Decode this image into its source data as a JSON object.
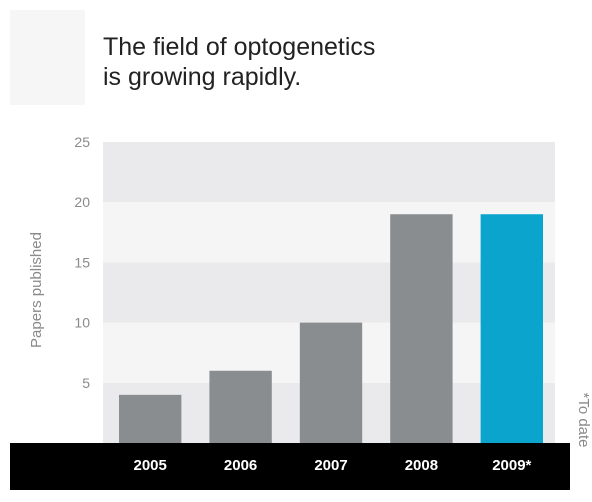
{
  "chart_data": {
    "type": "bar",
    "title_lines": [
      "The field of optogenetics",
      "is growing rapidly."
    ],
    "xlabel": "",
    "ylabel": "Papers published",
    "categories": [
      "2005",
      "2006",
      "2007",
      "2008",
      "2009*"
    ],
    "values": [
      4,
      6,
      10,
      19,
      19
    ],
    "ylim": [
      0,
      25
    ],
    "yticks": [
      5,
      10,
      15,
      20,
      25
    ],
    "grid": "alternating horizontal bands",
    "note": "*To date",
    "colors": {
      "bar": "#8a8d8f",
      "highlight_bar": "#0aa4cc",
      "band_light": "#f5f5f6",
      "band_dark": "#eaeaec",
      "axis_strip": "#000000"
    },
    "highlight_index": 4
  }
}
